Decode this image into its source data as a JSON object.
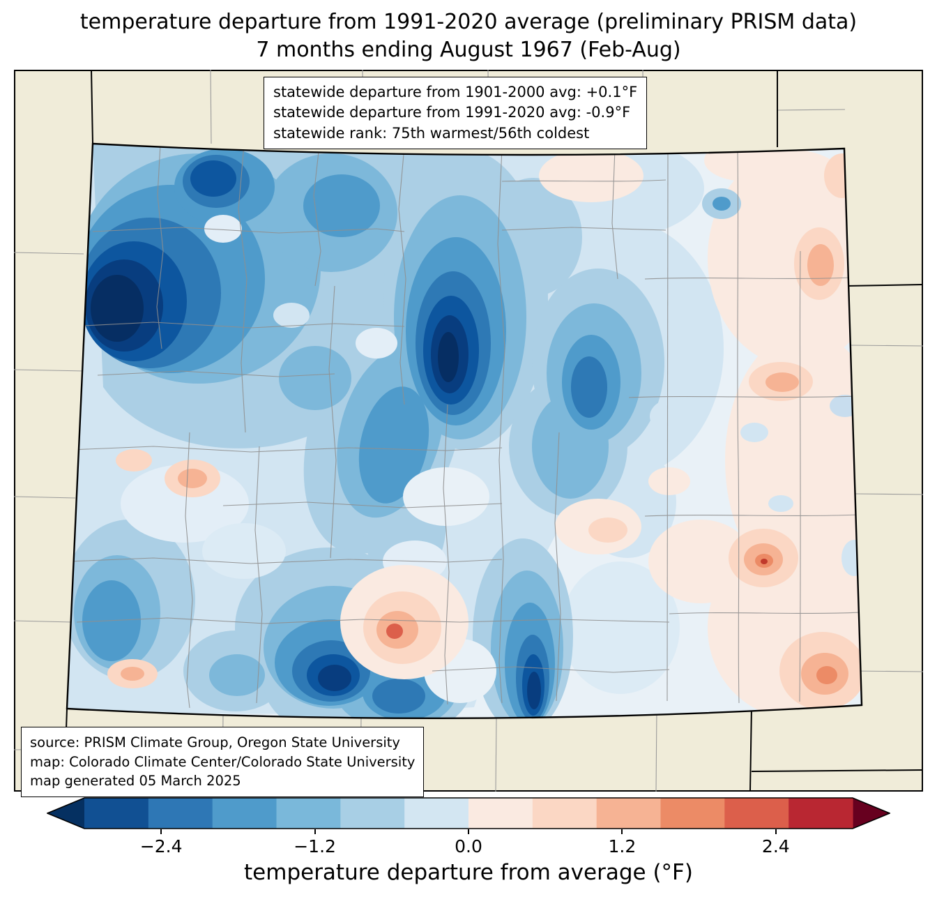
{
  "title": {
    "line1": "temperature departure from 1991-2020 average (preliminary PRISM data)",
    "line2": "7 months ending August 1967 (Feb-Aug)"
  },
  "stats_box": {
    "line1": "statewide departure from 1901-2000 avg: +0.1°F",
    "line2": "statewide departure from 1991-2020 avg: -0.9°F",
    "line3": "statewide rank: 75th warmest/56th coldest"
  },
  "source_box": {
    "line1": "source: PRISM Climate Group, Oregon State University",
    "line2": "map: Colorado Climate Center/Colorado State University",
    "line3": "map generated 05 March 2025"
  },
  "map": {
    "region": "Colorado",
    "background_color": "#f0ecd9",
    "state_border_color": "#000000",
    "county_line_color": "#8f8f8f"
  },
  "colorbar": {
    "label": "temperature departure from average (°F)",
    "range": [
      -3.0,
      3.0
    ],
    "under_color": "#053061",
    "over_color": "#67001f",
    "segment_colors": [
      "#115093",
      "#2e77b5",
      "#4f9bcb",
      "#7ab8da",
      "#a8cfe5",
      "#d3e6f2",
      "#faeae1",
      "#fbd7c4",
      "#f6b394",
      "#ec8b66",
      "#dc5f4b",
      "#b92732"
    ],
    "ticks": [
      {
        "value": -2.4,
        "label": "−2.4"
      },
      {
        "value": -1.2,
        "label": "−1.2"
      },
      {
        "value": 0.0,
        "label": "0.0"
      },
      {
        "value": 1.2,
        "label": "1.2"
      },
      {
        "value": 2.4,
        "label": "2.4"
      }
    ]
  }
}
